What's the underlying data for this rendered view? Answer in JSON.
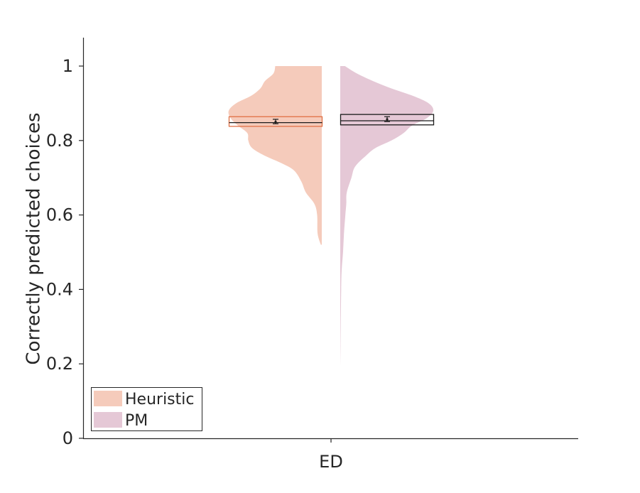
{
  "chart_data": {
    "type": "violin",
    "title": "",
    "xlabel": "",
    "ylabel": "Correctly predicted choices",
    "ylim": [
      0,
      1.08
    ],
    "yticks": [
      {
        "value": 0,
        "label": "0"
      },
      {
        "value": 0.2,
        "label": "0.2"
      },
      {
        "value": 0.4,
        "label": "0.4"
      },
      {
        "value": 0.6,
        "label": "0.6"
      },
      {
        "value": 0.8,
        "label": "0.8"
      },
      {
        "value": 1,
        "label": "1"
      }
    ],
    "categories": [
      "ED"
    ],
    "grid": false,
    "legend_position": "bottom-left",
    "series": [
      {
        "name": "Heuristic",
        "side": "left",
        "color": "#f5cbbb",
        "box_color": "#e07045",
        "range": [
          0.52,
          1.0
        ],
        "box": {
          "q1": 0.838,
          "median": 0.848,
          "q3": 0.864,
          "mean": 0.85,
          "ci": [
            0.845,
            0.857
          ]
        },
        "density": [
          [
            0.52,
            0.01
          ],
          [
            0.55,
            0.045
          ],
          [
            0.6,
            0.05
          ],
          [
            0.63,
            0.08
          ],
          [
            0.66,
            0.17
          ],
          [
            0.69,
            0.22
          ],
          [
            0.72,
            0.3
          ],
          [
            0.74,
            0.44
          ],
          [
            0.76,
            0.62
          ],
          [
            0.78,
            0.75
          ],
          [
            0.8,
            0.79
          ],
          [
            0.82,
            0.8
          ],
          [
            0.84,
            0.9
          ],
          [
            0.86,
            0.98
          ],
          [
            0.88,
            1.0
          ],
          [
            0.9,
            0.92
          ],
          [
            0.92,
            0.76
          ],
          [
            0.94,
            0.66
          ],
          [
            0.96,
            0.61
          ],
          [
            0.98,
            0.52
          ],
          [
            1.0,
            0.5
          ]
        ]
      },
      {
        "name": "PM",
        "side": "right",
        "color": "#e5c8d6",
        "box_color": "#1a1a1a",
        "range": [
          0.19,
          1.0
        ],
        "box": {
          "q1": 0.842,
          "median": 0.853,
          "q3": 0.87,
          "mean": 0.857,
          "ci": [
            0.851,
            0.864
          ]
        },
        "density": [
          [
            0.19,
            0.0
          ],
          [
            0.25,
            0.003
          ],
          [
            0.3,
            0.005
          ],
          [
            0.4,
            0.01
          ],
          [
            0.45,
            0.015
          ],
          [
            0.5,
            0.03
          ],
          [
            0.55,
            0.04
          ],
          [
            0.6,
            0.055
          ],
          [
            0.63,
            0.065
          ],
          [
            0.66,
            0.07
          ],
          [
            0.7,
            0.12
          ],
          [
            0.73,
            0.16
          ],
          [
            0.76,
            0.28
          ],
          [
            0.78,
            0.38
          ],
          [
            0.8,
            0.55
          ],
          [
            0.82,
            0.68
          ],
          [
            0.84,
            0.77
          ],
          [
            0.86,
            0.93
          ],
          [
            0.88,
            1.0
          ],
          [
            0.9,
            0.95
          ],
          [
            0.92,
            0.78
          ],
          [
            0.94,
            0.55
          ],
          [
            0.96,
            0.35
          ],
          [
            0.98,
            0.18
          ],
          [
            1.0,
            0.05
          ]
        ]
      }
    ]
  }
}
